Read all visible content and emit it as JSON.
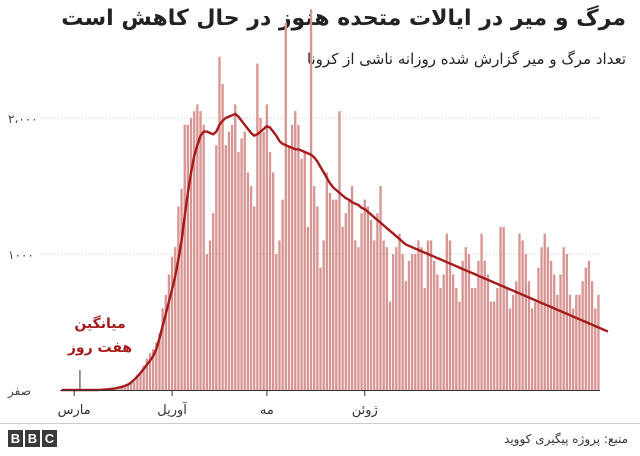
{
  "title": "مرگ و میر در ایالات متحده هنوز در حال کاهش است",
  "subtitle": "تعداد مرگ و میر گزارش شده روزانه ناشی از کرونا",
  "source": "منبع: پروژه پیگیری کووید",
  "logo": [
    "B",
    "B",
    "C"
  ],
  "colors": {
    "bar": "#d79694",
    "line": "#a51a1a",
    "grid": "#cccccc",
    "axis": "#333333",
    "annotation": "#a51a1a"
  },
  "annotation": {
    "line1": "میانگین",
    "line2": "هفت روز"
  },
  "chart_data": {
    "type": "bar",
    "ylim": [
      0,
      2500
    ],
    "yticks": [
      {
        "value": 0,
        "label": "صفر"
      },
      {
        "value": 1000,
        "label": "۱۰۰۰"
      },
      {
        "value": 2000,
        "label": "۲،۰۰۰"
      }
    ],
    "xticks": [
      {
        "day": 4,
        "label": "مارس"
      },
      {
        "day": 35,
        "label": "آوریل"
      },
      {
        "day": 65,
        "label": "مه"
      },
      {
        "day": 96,
        "label": "ژوئن"
      }
    ],
    "series": [
      {
        "name": "daily",
        "values": [
          0,
          0,
          0,
          0,
          0,
          0,
          0,
          0,
          0,
          0,
          0,
          0,
          0,
          0,
          5,
          5,
          10,
          10,
          15,
          20,
          25,
          40,
          50,
          60,
          110,
          130,
          180,
          230,
          270,
          300,
          350,
          420,
          600,
          700,
          850,
          980,
          1050,
          1350,
          1480,
          1950,
          1950,
          2000,
          2050,
          2100,
          2050,
          1950,
          1000,
          1100,
          1300,
          1800,
          2450,
          2250,
          1800,
          1900,
          1950,
          2100,
          1750,
          1850,
          1900,
          1600,
          1500,
          1350,
          2400,
          2000,
          1900,
          2100,
          1750,
          1600,
          1000,
          1100,
          1400,
          2700,
          1800,
          1950,
          2050,
          1950,
          1700,
          1750,
          1200,
          2800,
          1500,
          1350,
          900,
          1100,
          1600,
          1450,
          1400,
          1400,
          2050,
          1200,
          1300,
          1400,
          1500,
          1100,
          1050,
          1300,
          1400,
          1350,
          1250,
          1100,
          1300,
          1500,
          1100,
          1050,
          650,
          1000,
          1050,
          1150,
          1000,
          800,
          950,
          1000,
          1000,
          1100,
          1050,
          750,
          1100,
          1100,
          950,
          850,
          750,
          850,
          1150,
          1100,
          850,
          750,
          650,
          950,
          1050,
          1000,
          750,
          750,
          950,
          1150,
          950,
          850,
          650,
          650,
          750,
          1200,
          1200,
          750,
          600,
          700,
          800,
          1150,
          1100,
          1000,
          800,
          600,
          650,
          900,
          1050,
          1150,
          1050,
          950,
          850,
          700,
          850,
          1050,
          1000,
          700,
          600,
          700,
          700,
          800,
          900,
          950,
          800,
          600,
          700
        ]
      },
      {
        "name": "avg",
        "values": [
          0,
          0,
          0,
          0,
          0,
          0,
          0,
          0,
          0,
          0,
          0,
          0,
          1,
          2,
          4,
          6,
          9,
          12,
          18,
          22,
          30,
          40,
          55,
          75,
          100,
          125,
          155,
          185,
          215,
          250,
          300,
          380,
          470,
          560,
          650,
          740,
          840,
          960,
          1100,
          1280,
          1450,
          1600,
          1720,
          1800,
          1870,
          1900,
          1900,
          1890,
          1880,
          1900,
          1950,
          1980,
          2000,
          2010,
          2020,
          2030,
          2010,
          1980,
          1950,
          1920,
          1890,
          1870,
          1880,
          1900,
          1920,
          1940,
          1930,
          1900,
          1870,
          1830,
          1810,
          1800,
          1790,
          1780,
          1770,
          1770,
          1760,
          1750,
          1740,
          1730,
          1710,
          1680,
          1640,
          1600,
          1560,
          1520,
          1490,
          1470,
          1450,
          1430,
          1410,
          1400,
          1380,
          1370,
          1360,
          1340,
          1330,
          1310,
          1290,
          1270,
          1250,
          1230,
          1210,
          1190,
          1170,
          1150,
          1130,
          1110,
          1090,
          1070,
          1060,
          1050,
          1040,
          1030,
          1020,
          1010,
          1000,
          990,
          980,
          970,
          960,
          950,
          940,
          930,
          920,
          910,
          900,
          890,
          880,
          870,
          860,
          850,
          840,
          830,
          820,
          810,
          800,
          790,
          780,
          770,
          760,
          750,
          740,
          730,
          720,
          710,
          700,
          690,
          680,
          670,
          660,
          650,
          640,
          630,
          620,
          610,
          600,
          590,
          580,
          570,
          560,
          550,
          540,
          530,
          520,
          510,
          500,
          490,
          480,
          470,
          460,
          450,
          440,
          430
        ]
      }
    ]
  }
}
